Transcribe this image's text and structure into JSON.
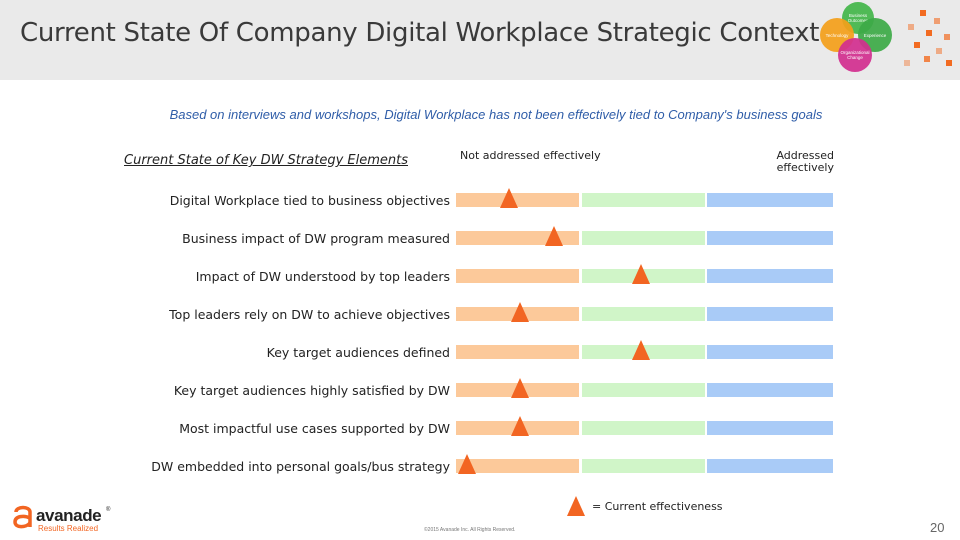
{
  "title": "Current State Of Company Digital Workplace Strategic Context",
  "header_graphic": {
    "circle_labels": [
      "Business Outcomes",
      "Technology",
      "Experience",
      "Organizational Change"
    ],
    "colors": [
      "#43b74a",
      "#f4a01a",
      "#3daa47",
      "#d32f8f"
    ]
  },
  "subtitle": "Based on interviews and workshops, Digital Workplace has not been effectively tied to Company's business goals",
  "column_header": "Current State of Key DW Strategy Elements",
  "scale": {
    "left_label": "Not addressed effectively",
    "right_label": "Addressed effectively",
    "segment_colors": [
      "#fcc99a",
      "#d0f5c8",
      "#a9cbf7"
    ]
  },
  "rows": [
    {
      "label": "Digital Workplace tied to business objectives",
      "effectiveness": 0.14
    },
    {
      "label": "Business impact of DW program measured",
      "effectiveness": 0.26
    },
    {
      "label": "Impact of DW understood by top leaders",
      "effectiveness": 0.49
    },
    {
      "label": "Top leaders rely on DW to achieve objectives",
      "effectiveness": 0.17
    },
    {
      "label": "Key target audiences defined",
      "effectiveness": 0.49
    },
    {
      "label": "Key target audiences highly satisfied by DW",
      "effectiveness": 0.17
    },
    {
      "label": "Most impactful use cases supported by DW",
      "effectiveness": 0.17
    },
    {
      "label": "DW embedded into personal goals/bus strategy",
      "effectiveness": 0.03
    }
  ],
  "legend": {
    "text": "= Current effectiveness",
    "marker_color": "#f26522",
    "marker_icon": "triangle-marker-icon"
  },
  "logo": {
    "word": "avanade",
    "reg": "®",
    "tagline": "Results Realized"
  },
  "copyright": "©2015 Avanade Inc. All Rights Reserved.",
  "page_number": "20"
}
